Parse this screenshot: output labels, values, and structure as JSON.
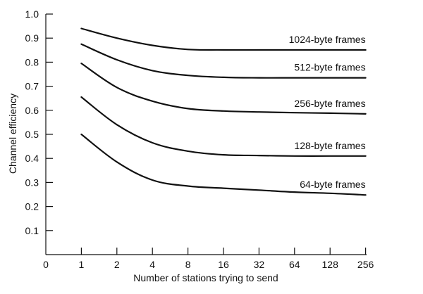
{
  "chart_data": {
    "type": "line",
    "title": "",
    "xlabel": "Number of stations trying to send",
    "ylabel": "Channel efficiency",
    "x_scale": "log2",
    "x_ticks": [
      "0",
      "1",
      "2",
      "4",
      "8",
      "16",
      "32",
      "64",
      "128",
      "256"
    ],
    "x": [
      1,
      2,
      4,
      8,
      16,
      32,
      64,
      128,
      256
    ],
    "ylim": [
      0,
      1.0
    ],
    "y_ticks": [
      "0.1",
      "0.2",
      "0.3",
      "0.4",
      "0.5",
      "0.6",
      "0.7",
      "0.8",
      "0.9",
      "1.0"
    ],
    "grid": false,
    "legend": "inline labels at right end of each curve",
    "series": [
      {
        "name": "1024-byte frames",
        "values": [
          0.94,
          0.9,
          0.87,
          0.853,
          0.851,
          0.851,
          0.851,
          0.851,
          0.851
        ]
      },
      {
        "name": "512-byte frames",
        "values": [
          0.875,
          0.81,
          0.765,
          0.745,
          0.737,
          0.735,
          0.735,
          0.735,
          0.735
        ]
      },
      {
        "name": "256-byte frames",
        "values": [
          0.795,
          0.695,
          0.638,
          0.607,
          0.597,
          0.593,
          0.59,
          0.588,
          0.585
        ]
      },
      {
        "name": "128-byte frames",
        "values": [
          0.655,
          0.54,
          0.465,
          0.43,
          0.415,
          0.412,
          0.41,
          0.41,
          0.41
        ]
      },
      {
        "name": "64-byte frames",
        "values": [
          0.5,
          0.385,
          0.31,
          0.285,
          0.276,
          0.268,
          0.26,
          0.255,
          0.248
        ]
      }
    ]
  }
}
